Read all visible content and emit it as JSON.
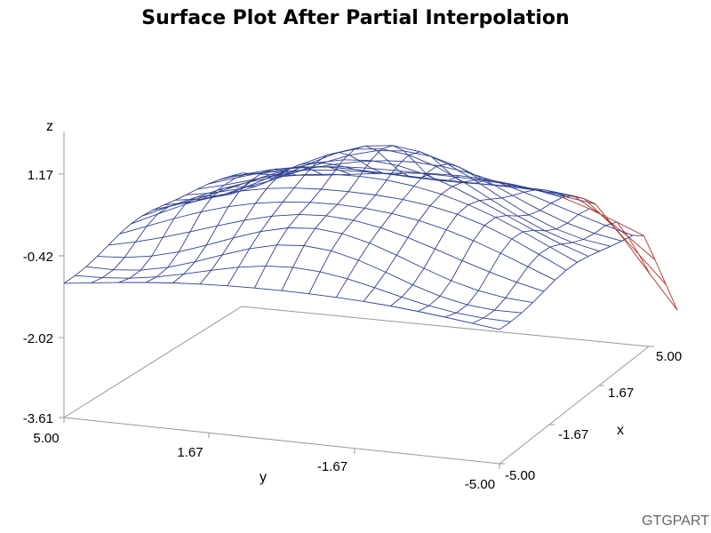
{
  "title": "Surface Plot After Partial Interpolation",
  "footnote": "GTGPART",
  "colors": {
    "mesh": "#2e3f8f",
    "mesh_extrapolated": "#b0302a",
    "axis": "#999999",
    "text": "#000000"
  },
  "chart_data": {
    "type": "surface",
    "title": "Surface Plot After Partial Interpolation",
    "zlabel": "z",
    "ylabel": "y",
    "xlabel": "x",
    "z_ticks": [
      "1.17",
      "-0.42",
      "-2.02",
      "-3.61"
    ],
    "y_ticks": [
      "5.00",
      "1.67",
      "-1.67",
      "-5.00"
    ],
    "x_ticks": [
      "5.00",
      "1.67",
      "-1.67",
      "-5.00"
    ],
    "zlim": [
      -3.61,
      1.97
    ],
    "ylim": [
      -5.0,
      5.0
    ],
    "xlim": [
      -5.0,
      5.0
    ],
    "grid_size": 16,
    "peak": {
      "x": 0.0,
      "y": 0.0,
      "z": 1.9
    },
    "corner_minimum": {
      "x": 5.0,
      "y": -5.0,
      "z": -2.6
    }
  }
}
